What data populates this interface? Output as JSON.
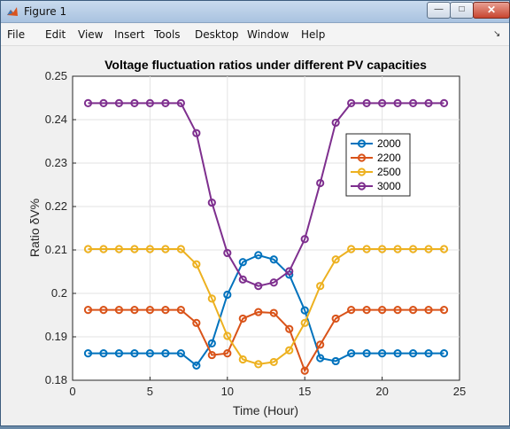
{
  "window": {
    "title": "Figure 1"
  },
  "menu": [
    "File",
    "Edit",
    "View",
    "Insert",
    "Tools",
    "Desktop",
    "Window",
    "Help"
  ],
  "chart_data": {
    "type": "line",
    "title": "Voltage fluctuation ratios under different PV capacities",
    "xlabel": "Time (Hour)",
    "ylabel": "Ratio δV%",
    "xlim": [
      0,
      25
    ],
    "ylim": [
      0.18,
      0.25
    ],
    "xticks": [
      0,
      5,
      10,
      15,
      20,
      25
    ],
    "yticks": [
      0.18,
      0.19,
      0.2,
      0.21,
      0.22,
      0.23,
      0.24,
      0.25
    ],
    "grid": true,
    "legend_position": "inside-right",
    "x": [
      1,
      2,
      3,
      4,
      5,
      6,
      7,
      8,
      9,
      10,
      11,
      12,
      13,
      14,
      15,
      16,
      17,
      18,
      19,
      20,
      21,
      22,
      23,
      24
    ],
    "series": [
      {
        "name": "2000",
        "color": "#0072BD",
        "values": [
          0.1862,
          0.1862,
          0.1862,
          0.1862,
          0.1862,
          0.1862,
          0.1862,
          0.1834,
          0.1885,
          0.1997,
          0.2072,
          0.2088,
          0.2078,
          0.2043,
          0.1961,
          0.1851,
          0.1844,
          0.1862,
          0.1862,
          0.1862,
          0.1862,
          0.1862,
          0.1862,
          0.1862
        ]
      },
      {
        "name": "2200",
        "color": "#D95319",
        "values": [
          0.1962,
          0.1962,
          0.1962,
          0.1962,
          0.1962,
          0.1962,
          0.1962,
          0.1932,
          0.1858,
          0.1862,
          0.1942,
          0.1957,
          0.1955,
          0.1918,
          0.1822,
          0.1882,
          0.1942,
          0.1962,
          0.1962,
          0.1962,
          0.1962,
          0.1962,
          0.1962,
          0.1962
        ]
      },
      {
        "name": "2500",
        "color": "#EDB120",
        "values": [
          0.2102,
          0.2102,
          0.2102,
          0.2102,
          0.2102,
          0.2102,
          0.2102,
          0.2067,
          0.1988,
          0.1902,
          0.1848,
          0.1837,
          0.1842,
          0.1869,
          0.1932,
          0.2017,
          0.2078,
          0.2102,
          0.2102,
          0.2102,
          0.2102,
          0.2102,
          0.2102,
          0.2102
        ]
      },
      {
        "name": "3000",
        "color": "#7E2F8E",
        "values": [
          0.2438,
          0.2438,
          0.2438,
          0.2438,
          0.2438,
          0.2438,
          0.2438,
          0.2369,
          0.2209,
          0.2093,
          0.2032,
          0.2017,
          0.2025,
          0.2051,
          0.2125,
          0.2254,
          0.2393,
          0.2438,
          0.2438,
          0.2438,
          0.2438,
          0.2438,
          0.2438,
          0.2438
        ]
      }
    ]
  }
}
